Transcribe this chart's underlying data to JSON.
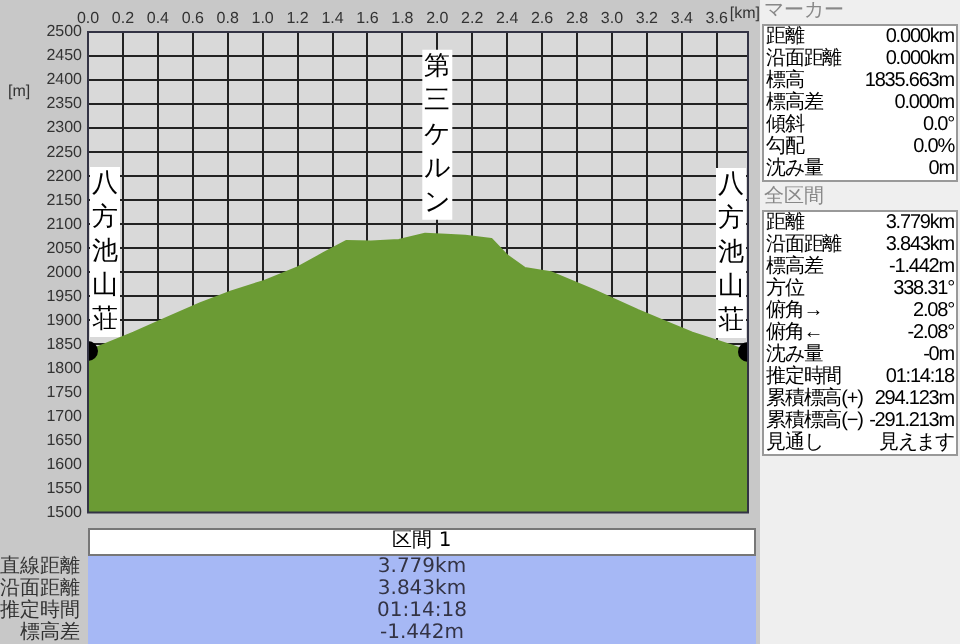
{
  "chart_data": [
    {
      "type": "area",
      "xlabel": "[km]",
      "ylabel": "[m]",
      "xlim": [
        0,
        3.779
      ],
      "ylim": [
        1500,
        2500
      ],
      "xticks": [
        {
          "value": 0,
          "label": "0.0"
        },
        0.2,
        0.4,
        0.6,
        0.8,
        {
          "value": 1,
          "label": "1.0"
        },
        1.2,
        1.4,
        1.6,
        1.8,
        {
          "value": 2,
          "label": "2.0"
        },
        2.2,
        2.4,
        2.6,
        2.8,
        {
          "value": 3,
          "label": "3.0"
        },
        3.2,
        3.4,
        3.6
      ],
      "yticks": [
        1500,
        1550,
        1600,
        1650,
        1700,
        1750,
        1800,
        1850,
        1900,
        1950,
        2000,
        2050,
        2100,
        2150,
        2200,
        2250,
        2300,
        2350,
        2400,
        2450,
        2500
      ],
      "grid": true,
      "legend": false,
      "series": [
        {
          "type": "area",
          "color": "#6b9b34",
          "x": [
            0,
            0.26,
            0.45,
            0.64,
            0.82,
            1.01,
            1.2,
            1.35,
            1.48,
            1.62,
            1.78,
            1.93,
            2.05,
            2.16,
            2.31,
            2.4,
            2.5,
            2.65,
            2.9,
            3.15,
            3.3,
            3.46,
            3.69,
            3.779
          ],
          "values": [
            1836,
            1874,
            1905,
            1935,
            1960,
            1982,
            2010,
            2040,
            2065,
            2064,
            2067,
            2080,
            2078,
            2076,
            2069,
            2035,
            2009,
            2000,
            1962,
            1921,
            1898,
            1874,
            1847,
            1834
          ]
        },
        {
          "type": "scatter",
          "color": "#000000",
          "x": [
            0,
            3.779
          ],
          "values": [
            1836,
            1834
          ]
        }
      ],
      "annotations": [
        {
          "text": "八方池山荘",
          "x": 0,
          "y": 1836
        },
        {
          "text": "第三ケルン",
          "x": 2.0,
          "y": 2080
        },
        {
          "text": "八方池山荘",
          "x": 3.779,
          "y": 1834
        }
      ]
    },
    {
      "type": "other",
      "title": "マーカー",
      "annotations": [
        "距離",
        "0.000km",
        "沿面距離",
        "0.000km",
        "標高",
        "1835.663m",
        "標高差",
        "0.000m",
        "傾斜",
        "0.0°",
        "勾配",
        "0.0%",
        "沈み量",
        "0m"
      ]
    },
    {
      "type": "other",
      "title": "全区間",
      "annotations": [
        "距離",
        "3.779km",
        "沿面距離",
        "3.843km",
        "標高差",
        "-1.442m",
        "方位",
        "338.31°",
        "俯角→",
        "2.08°",
        "俯角←",
        "-2.08°",
        "沈み量",
        "-0m",
        "推定時間",
        "01:14:18",
        "累積標高(+)",
        "294.123m",
        "累積標高(−)",
        "-291.213m",
        "見通し",
        "見えます"
      ]
    },
    {
      "type": "other",
      "title": "区間 1",
      "annotations": [
        "直線距離",
        "3.779km",
        "沿面距離",
        "3.843km",
        "推定時間",
        "01:14:18",
        "標高差",
        "-1.442m"
      ]
    }
  ]
}
